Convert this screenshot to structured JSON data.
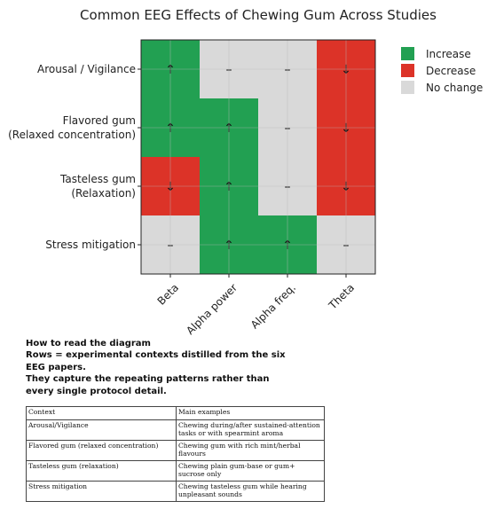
{
  "chart_data": {
    "type": "heatmap",
    "title": "Common EEG Effects of Chewing Gum Across Studies",
    "rows": [
      "Arousal / Vigilance",
      "Flavored gum\n(Relaxed concentration)",
      "Tasteless gum\n(Relaxation)",
      "Stress mitigation"
    ],
    "columns": [
      "Beta",
      "Alpha power",
      "Alpha freq.",
      "Theta"
    ],
    "values": [
      [
        1,
        0,
        0,
        -1
      ],
      [
        1,
        1,
        0,
        -1
      ],
      [
        -1,
        1,
        0,
        -1
      ],
      [
        0,
        1,
        1,
        0
      ]
    ],
    "symbols": {
      "1": "↑",
      "-1": "↓",
      "0": "–"
    },
    "legend": [
      {
        "label": "Increase",
        "value": 1,
        "color": "#22a052"
      },
      {
        "label": "Decrease",
        "value": -1,
        "color": "#dc3328"
      },
      {
        "label": "No change",
        "value": 0,
        "color": "#d9d9d9"
      }
    ],
    "legend_position": "upper-right",
    "grid": true
  },
  "notes": {
    "heading": "How to read the diagram",
    "line1": "Rows = experimental contexts distilled from the six EEG papers.",
    "line2": "They capture the repeating patterns rather than every single protocol detail."
  },
  "table": {
    "headers": [
      "Context",
      "Main examples"
    ],
    "rows": [
      [
        "Arousal/Vigilance",
        "Chewing during/after sustained-attention tasks or with spearmint aroma"
      ],
      [
        "Flavored gum (relaxed concentration)",
        "Chewing gum with rich mint/herbal flavours"
      ],
      [
        "Tasteless gum (relaxation)",
        "Chewing plain gum-base or gum+ sucrose only"
      ],
      [
        "Stress mitigation",
        "Chewing tasteless gum while hearing unpleasant sounds"
      ]
    ]
  }
}
